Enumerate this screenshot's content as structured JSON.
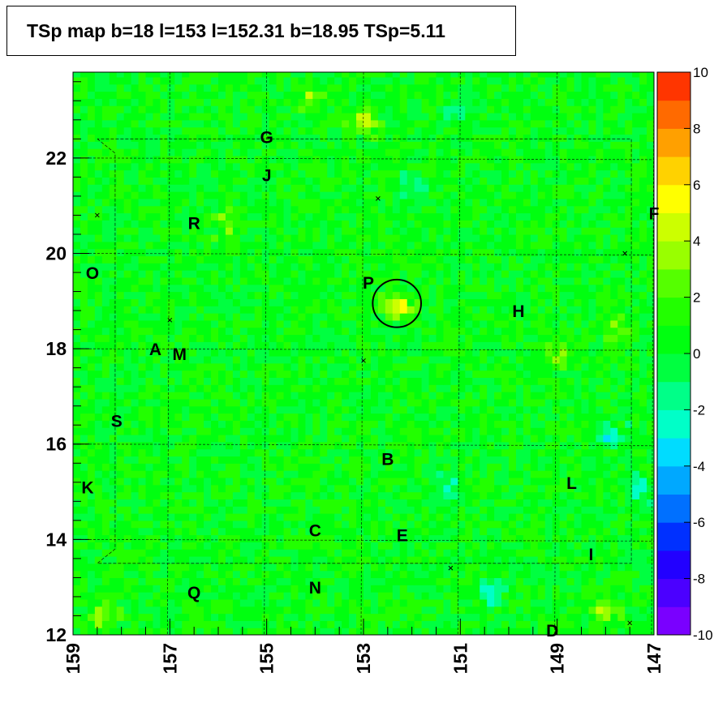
{
  "chart_data": {
    "type": "heatmap",
    "title": "TSp map b=18 l=153 l=152.31 b=18.95 TSp=5.11",
    "xlabel": "",
    "ylabel": "",
    "xlim": [
      159,
      147
    ],
    "ylim": [
      12,
      23.8
    ],
    "x_reversed": true,
    "x_ticks": [
      159,
      157,
      155,
      153,
      151,
      149,
      147
    ],
    "y_ticks": [
      12,
      14,
      16,
      18,
      20,
      22
    ],
    "z_range": [
      -10,
      10
    ],
    "z_ticks": [
      10,
      8,
      6,
      4,
      2,
      0,
      -2,
      -4,
      -6,
      -8,
      -10
    ],
    "background_value": 0,
    "colormap_colors": [
      "#7a00ff",
      "#4b00ff",
      "#2200ff",
      "#0030ff",
      "#0070ff",
      "#00a8ff",
      "#00dcff",
      "#00ffc8",
      "#00ff88",
      "#00ff40",
      "#00ff10",
      "#22ff00",
      "#55ff00",
      "#99ff00",
      "#ccff00",
      "#ffff00",
      "#ffd200",
      "#ffa000",
      "#ff6a00",
      "#ff3500",
      "#ff0000"
    ],
    "peak": {
      "l": 152.31,
      "b": 18.95,
      "ts": 5.11,
      "circle_radius_deg": 0.5
    },
    "hotspots": [
      {
        "l": 152.3,
        "b": 18.9,
        "value": 5
      },
      {
        "l": 153.0,
        "b": 22.8,
        "value": 4
      },
      {
        "l": 154.1,
        "b": 23.3,
        "value": 3
      },
      {
        "l": 155.8,
        "b": 20.7,
        "value": 3
      },
      {
        "l": 148.0,
        "b": 12.6,
        "value": 4
      },
      {
        "l": 158.4,
        "b": 12.4,
        "value": 3
      },
      {
        "l": 147.8,
        "b": 18.5,
        "value": 2
      },
      {
        "l": 149.0,
        "b": 17.9,
        "value": 2
      },
      {
        "l": 152.0,
        "b": 16.2,
        "value": 2
      }
    ],
    "coldspots": [
      {
        "l": 150.4,
        "b": 12.9,
        "value": -4
      },
      {
        "l": 151.3,
        "b": 15.1,
        "value": -3
      },
      {
        "l": 147.3,
        "b": 15.1,
        "value": -3
      },
      {
        "l": 147.9,
        "b": 16.2,
        "value": -3
      },
      {
        "l": 151.1,
        "b": 23.0,
        "value": -2
      },
      {
        "l": 152.0,
        "b": 21.4,
        "value": -2
      }
    ],
    "source_labels": [
      {
        "text": "G",
        "l": 155.0,
        "b": 22.45
      },
      {
        "text": "J",
        "l": 155.0,
        "b": 21.65
      },
      {
        "text": "R",
        "l": 156.5,
        "b": 20.65
      },
      {
        "text": "F",
        "l": 147.0,
        "b": 20.85
      },
      {
        "text": "O",
        "l": 158.6,
        "b": 19.6
      },
      {
        "text": "P",
        "l": 152.9,
        "b": 19.4
      },
      {
        "text": "H",
        "l": 149.8,
        "b": 18.8
      },
      {
        "text": "A",
        "l": 157.3,
        "b": 18.0
      },
      {
        "text": "M",
        "l": 156.8,
        "b": 17.9
      },
      {
        "text": "S",
        "l": 158.1,
        "b": 16.5
      },
      {
        "text": "B",
        "l": 152.5,
        "b": 15.7
      },
      {
        "text": "K",
        "l": 158.7,
        "b": 15.1
      },
      {
        "text": "L",
        "l": 148.7,
        "b": 15.2
      },
      {
        "text": "C",
        "l": 154.0,
        "b": 14.2
      },
      {
        "text": "E",
        "l": 152.2,
        "b": 14.1
      },
      {
        "text": "I",
        "l": 148.3,
        "b": 13.7
      },
      {
        "text": "Q",
        "l": 156.5,
        "b": 12.9
      },
      {
        "text": "N",
        "l": 154.0,
        "b": 13.0
      },
      {
        "text": "D",
        "l": 149.1,
        "b": 12.1
      }
    ],
    "x_markers": [
      {
        "l": 152.7,
        "b": 21.15
      },
      {
        "l": 158.5,
        "b": 20.8
      },
      {
        "l": 147.6,
        "b": 20.0
      },
      {
        "l": 157.0,
        "b": 18.6
      },
      {
        "l": 153.0,
        "b": 17.75
      },
      {
        "l": 151.2,
        "b": 13.4
      },
      {
        "l": 147.5,
        "b": 12.25
      }
    ],
    "grid_l": [
      159,
      157,
      155,
      153,
      151,
      149,
      147
    ],
    "grid_b": [
      14,
      16,
      18,
      20,
      22
    ],
    "region_outline": {
      "l_min": 147.3,
      "l_max": 158.8,
      "b_min": 13.5,
      "b_max": 22.4
    }
  }
}
